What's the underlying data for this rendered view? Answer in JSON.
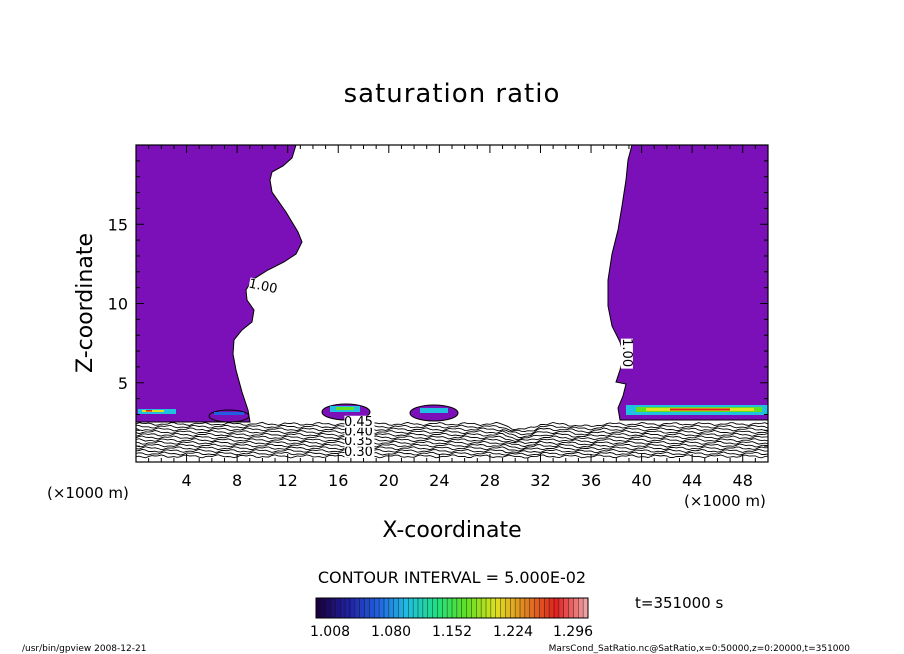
{
  "chart_data": {
    "type": "contour",
    "title": "saturation ratio",
    "xlabel": "X-coordinate",
    "ylabel": "Z-coordinate",
    "x_unit_left": "(×1000 m)",
    "x_unit_right": "(×1000 m)",
    "xlim": [
      0,
      50
    ],
    "ylim": [
      0,
      20
    ],
    "x_ticks": [
      4,
      8,
      12,
      16,
      20,
      24,
      28,
      32,
      36,
      40,
      44,
      48
    ],
    "y_ticks": [
      5,
      10,
      15
    ],
    "contour_interval_text": "CONTOUR INTERVAL = 5.000E-02",
    "contour_labels": [
      {
        "text": "1.00",
        "x": 10.0,
        "z": 10.9
      },
      {
        "text": "1.00",
        "x": 38.6,
        "z": 6.9
      },
      {
        "text": "0.30",
        "x": 17.6,
        "z": 0.45
      },
      {
        "text": "0.35",
        "x": 17.6,
        "z": 1.15
      },
      {
        "text": "0.40",
        "x": 17.6,
        "z": 1.75
      },
      {
        "text": "0.45",
        "x": 17.6,
        "z": 2.35
      }
    ],
    "colorbar": {
      "min": 1.008,
      "max": 1.3,
      "tick_labels": [
        "1.008",
        "1.080",
        "1.152",
        "1.224",
        "1.296"
      ],
      "colors": [
        "#1a0040",
        "#2020a0",
        "#2060e0",
        "#20c0e0",
        "#20e080",
        "#60e020",
        "#e0e020",
        "#e08020",
        "#e02020",
        "#f0a0a0"
      ]
    },
    "time_label": "t=351000 s",
    "fill_color": "#7b10b8"
  },
  "footer": {
    "left": "/usr/bin/gpview   2008-12-21",
    "right": "MarsCond_SatRatio.nc@SatRatio,x=0:50000,z=0:20000,t=351000"
  }
}
